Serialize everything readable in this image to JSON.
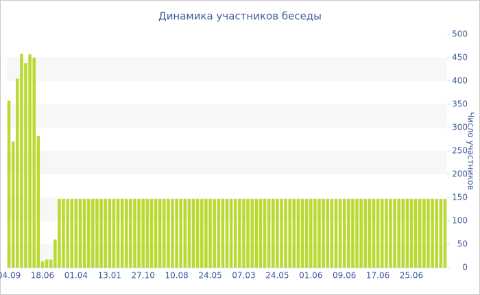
{
  "chart_data": {
    "type": "bar",
    "title": "Динамика участников беседы",
    "y_axis_label": "Число участников",
    "categories": [
      "04.09",
      null,
      null,
      null,
      null,
      null,
      null,
      null,
      "18.06",
      null,
      null,
      null,
      null,
      null,
      null,
      null,
      "01.04",
      null,
      null,
      null,
      null,
      null,
      null,
      null,
      "13.01",
      null,
      null,
      null,
      null,
      null,
      null,
      null,
      "27.10",
      null,
      null,
      null,
      null,
      null,
      null,
      null,
      "10.08",
      null,
      null,
      null,
      null,
      null,
      null,
      null,
      "24.05",
      null,
      null,
      null,
      null,
      null,
      null,
      null,
      "07.03",
      null,
      null,
      null,
      null,
      null,
      null,
      null,
      "24.05",
      null,
      null,
      null,
      null,
      null,
      null,
      null,
      "01.06",
      null,
      null,
      null,
      null,
      null,
      null,
      null,
      "09.06",
      null,
      null,
      null,
      null,
      null,
      null,
      null,
      "17.06",
      null,
      null,
      null,
      null,
      null,
      null,
      null,
      "25.06",
      null,
      null,
      null,
      null,
      null,
      null,
      null,
      null
    ],
    "values": [
      358,
      270,
      405,
      458,
      438,
      457,
      450,
      282,
      13,
      17,
      17,
      60,
      147,
      147,
      147,
      147,
      147,
      147,
      147,
      147,
      147,
      147,
      147,
      147,
      147,
      147,
      147,
      147,
      147,
      147,
      147,
      147,
      147,
      147,
      147,
      147,
      147,
      147,
      147,
      147,
      147,
      147,
      147,
      147,
      147,
      147,
      147,
      147,
      147,
      147,
      147,
      147,
      147,
      147,
      147,
      147,
      147,
      147,
      147,
      147,
      147,
      147,
      147,
      147,
      147,
      147,
      147,
      147,
      147,
      147,
      147,
      147,
      147,
      147,
      147,
      147,
      147,
      147,
      147,
      147,
      147,
      147,
      147,
      147,
      147,
      147,
      147,
      147,
      147,
      147,
      147,
      147,
      147,
      147,
      147,
      147,
      147,
      147,
      147,
      147,
      147,
      147,
      147,
      147,
      147
    ],
    "color": "#bada2f",
    "ylim": [
      0,
      500
    ],
    "yticks": [
      0,
      50,
      100,
      150,
      200,
      250,
      300,
      350,
      400,
      450,
      500
    ],
    "y_axis_side": "right",
    "band_stripes": true
  }
}
